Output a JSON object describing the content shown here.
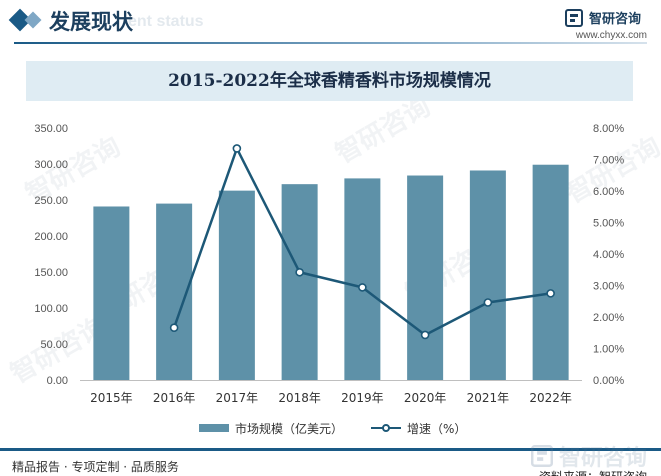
{
  "header": {
    "title": "发展现状",
    "ghost_text": "ent status",
    "brand_name": "智研咨询",
    "brand_url": "www.chyxx.com"
  },
  "watermark_text": "智研咨询",
  "chart_data": {
    "type": "bar",
    "title": "2015-2022年全球香精香料市场规模情况",
    "categories": [
      "2015年",
      "2016年",
      "2017年",
      "2018年",
      "2019年",
      "2020年",
      "2021年",
      "2022年"
    ],
    "series": [
      {
        "name": "市场规模（亿美元）",
        "type": "bar",
        "axis": "left",
        "color": "#5e91a8",
        "values": [
          241,
          245,
          263,
          272,
          280,
          284,
          291,
          299
        ]
      },
      {
        "name": "增速（%）",
        "type": "line",
        "axis": "right",
        "color": "#1d5877",
        "values": [
          null,
          1.66,
          7.35,
          3.42,
          2.94,
          1.43,
          2.46,
          2.75
        ]
      }
    ],
    "y_left": {
      "min": 0,
      "max": 350,
      "step": 50,
      "tick_labels": [
        "0.00",
        "50.00",
        "100.00",
        "150.00",
        "200.00",
        "250.00",
        "300.00",
        "350.00"
      ]
    },
    "y_right": {
      "min": 0,
      "max": 8,
      "step": 1,
      "tick_labels": [
        "0.00%",
        "1.00%",
        "2.00%",
        "3.00%",
        "4.00%",
        "5.00%",
        "6.00%",
        "7.00%",
        "8.00%"
      ]
    },
    "grid": false,
    "legend": "bottom"
  },
  "legend": {
    "bar_label": "市场规模（亿美元）",
    "line_label": "增速（%）"
  },
  "footer": {
    "left_text": "精品报告 · 专项定制 · 品质服务",
    "brand_name": "智研咨询",
    "source_text": "资料来源：智研咨询"
  }
}
